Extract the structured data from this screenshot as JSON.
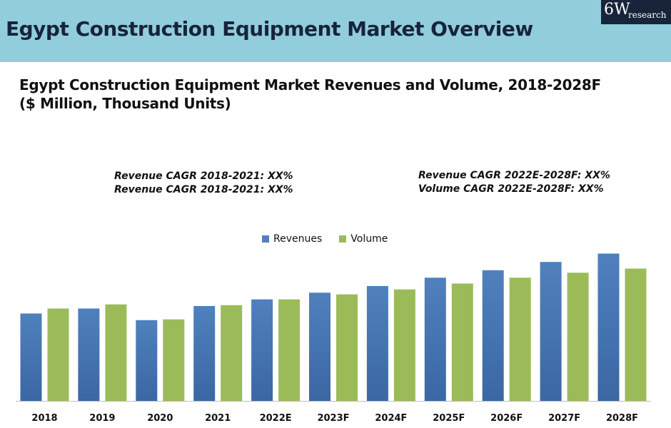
{
  "header": {
    "title": "Egypt Construction Equipment Market Overview",
    "logo_main": "6W",
    "logo_sub": "research"
  },
  "chart": {
    "title_line1": "Egypt Construction Equipment Market Revenues and Volume, 2018-2028F",
    "title_line2": "($ Million, Thousand Units)",
    "cagr_left": [
      "Revenue CAGR 2018-2021: XX%",
      "Revenue CAGR 2018-2021: XX%"
    ],
    "cagr_right": [
      "Revenue CAGR 2022E-2028F: XX%",
      "Volume CAGR 2022E-2028F: XX%"
    ]
  },
  "colors": {
    "revenues": "#4f81bd",
    "revenues_dark": "#3b67a3",
    "volume": "#9bbb59"
  },
  "chart_data": {
    "type": "bar",
    "title": "Egypt Construction Equipment Market Revenues and Volume, 2018-2028F ($ Million, Thousand Units)",
    "categories": [
      "2018",
      "2019",
      "2020",
      "2021",
      "2022E",
      "2023F",
      "2024F",
      "2025F",
      "2026F",
      "2027F",
      "2028F"
    ],
    "series": [
      {
        "name": "Revenues",
        "values": [
          105,
          111,
          97,
          114,
          122,
          130,
          138,
          148,
          157,
          167,
          177
        ]
      },
      {
        "name": "Volume",
        "values": [
          111,
          116,
          98,
          115,
          122,
          128,
          134,
          141,
          148,
          154,
          159
        ]
      }
    ],
    "ylim": [
      0,
      180
    ],
    "legend": "top-center",
    "grid": false
  }
}
